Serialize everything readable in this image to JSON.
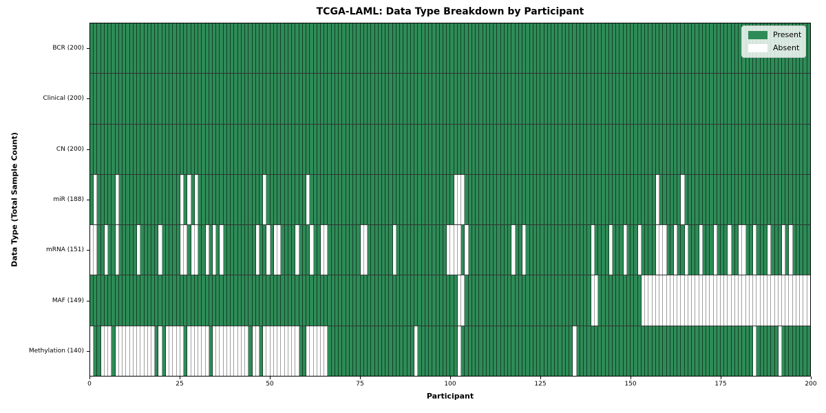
{
  "title": "TCGA-LAML: Data Type Breakdown by Participant",
  "xlabel": "Participant",
  "ylabel": "Data Type (Total Sample Count)",
  "legend": {
    "present_label": "Present",
    "absent_label": "Absent"
  },
  "colors": {
    "present": "#2e8b57",
    "absent": "#ffffff",
    "legend_border": "#cccccc"
  },
  "chart_data": {
    "type": "heatmap",
    "x_axis": {
      "label": "Participant",
      "range": [
        0,
        200
      ],
      "ticks": [
        0,
        25,
        50,
        75,
        100,
        125,
        150,
        175,
        200
      ]
    },
    "n_participants": 200,
    "legend_position": "upper right",
    "legend_entries": [
      "Present",
      "Absent"
    ],
    "rows": [
      {
        "name": "BCR",
        "label": "BCR (200)",
        "present_count": 200,
        "absent_participants": []
      },
      {
        "name": "Clinical",
        "label": "Clinical (200)",
        "present_count": 200,
        "absent_participants": []
      },
      {
        "name": "CN",
        "label": "CN (200)",
        "present_count": 200,
        "absent_participants": []
      },
      {
        "name": "miR",
        "label": "miR (188)",
        "present_count": 188,
        "absent_participants": [
          1,
          7,
          25,
          27,
          29,
          48,
          60,
          101,
          102,
          103,
          157,
          164
        ]
      },
      {
        "name": "mRNA",
        "label": "mRNA (151)",
        "present_count": 151,
        "absent_participants": [
          0,
          1,
          4,
          7,
          13,
          19,
          25,
          26,
          28,
          29,
          32,
          34,
          36,
          46,
          49,
          51,
          52,
          57,
          61,
          64,
          65,
          75,
          76,
          84,
          99,
          100,
          101,
          102,
          104,
          117,
          120,
          139,
          144,
          148,
          152,
          157,
          158,
          159,
          162,
          165,
          169,
          173,
          177,
          180,
          181,
          184,
          188,
          192,
          194
        ]
      },
      {
        "name": "MAF",
        "label": "MAF (149)",
        "present_count": 149,
        "absent_participants": [
          102,
          103,
          139,
          140,
          153,
          154,
          155,
          156,
          157,
          158,
          159,
          160,
          161,
          162,
          163,
          164,
          165,
          166,
          167,
          168,
          169,
          170,
          171,
          172,
          173,
          174,
          175,
          176,
          177,
          178,
          179,
          180,
          181,
          182,
          183,
          184,
          185,
          186,
          187,
          188,
          189,
          190,
          191,
          192,
          193,
          194,
          195,
          196,
          197,
          198,
          199
        ]
      },
      {
        "name": "Methylation",
        "label": "Methylation (140)",
        "present_count": 140,
        "absent_participants": [
          0,
          3,
          4,
          5,
          7,
          8,
          9,
          10,
          11,
          12,
          13,
          14,
          15,
          16,
          17,
          19,
          21,
          22,
          23,
          24,
          25,
          27,
          28,
          29,
          30,
          31,
          32,
          34,
          35,
          36,
          37,
          38,
          39,
          40,
          41,
          42,
          43,
          45,
          46,
          48,
          49,
          50,
          51,
          52,
          53,
          54,
          55,
          56,
          57,
          60,
          61,
          62,
          63,
          64,
          65,
          90,
          102,
          134,
          184,
          191
        ]
      }
    ]
  }
}
